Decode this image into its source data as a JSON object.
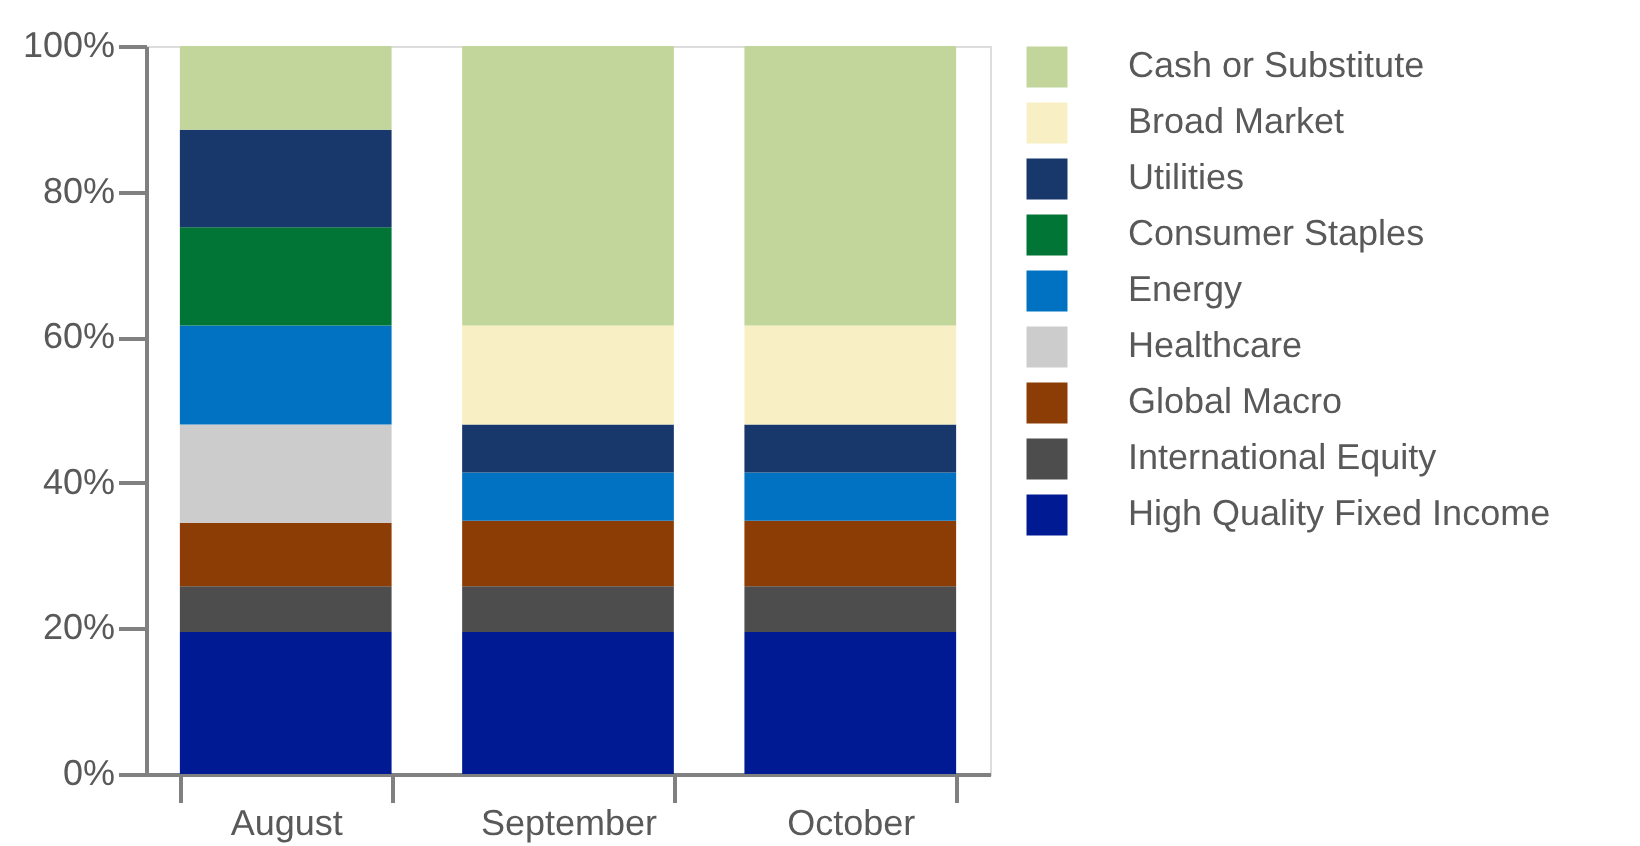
{
  "chart_data": {
    "type": "bar",
    "stacked": true,
    "categories": [
      "August",
      "September",
      "October"
    ],
    "ylim": [
      0,
      100
    ],
    "yticks": [
      {
        "value": 0,
        "label": "0%"
      },
      {
        "value": 20,
        "label": "20%"
      },
      {
        "value": 40,
        "label": "40%"
      },
      {
        "value": 60,
        "label": "60%"
      },
      {
        "value": 80,
        "label": "80%"
      },
      {
        "value": 100,
        "label": "100%"
      }
    ],
    "grid": false,
    "legend": "right",
    "series": [
      {
        "name": "High Quality Fixed Income",
        "color": "#001a94",
        "values": [
          19.5,
          19.5,
          19.5
        ]
      },
      {
        "name": "International Equity",
        "color": "#4d4d4d",
        "values": [
          6.3,
          6.3,
          6.3
        ]
      },
      {
        "name": "Global Macro",
        "color": "#8c3c05",
        "values": [
          8.7,
          9.0,
          9.0
        ]
      },
      {
        "name": "Healthcare",
        "color": "#cccccc",
        "values": [
          13.5,
          null,
          null
        ]
      },
      {
        "name": "Energy",
        "color": "#0072c1",
        "values": [
          13.6,
          6.6,
          6.6
        ]
      },
      {
        "name": "Consumer Staples",
        "color": "#007535",
        "values": [
          13.5,
          null,
          null
        ]
      },
      {
        "name": "Utilities",
        "color": "#18376a",
        "values": [
          13.4,
          6.6,
          6.6
        ]
      },
      {
        "name": "Broad Market",
        "color": "#f8f0c4",
        "values": [
          null,
          13.6,
          13.6
        ]
      },
      {
        "name": "Cash or Substitute",
        "color": "#c2d69c",
        "values": [
          11.5,
          38.4,
          38.4
        ]
      }
    ]
  }
}
